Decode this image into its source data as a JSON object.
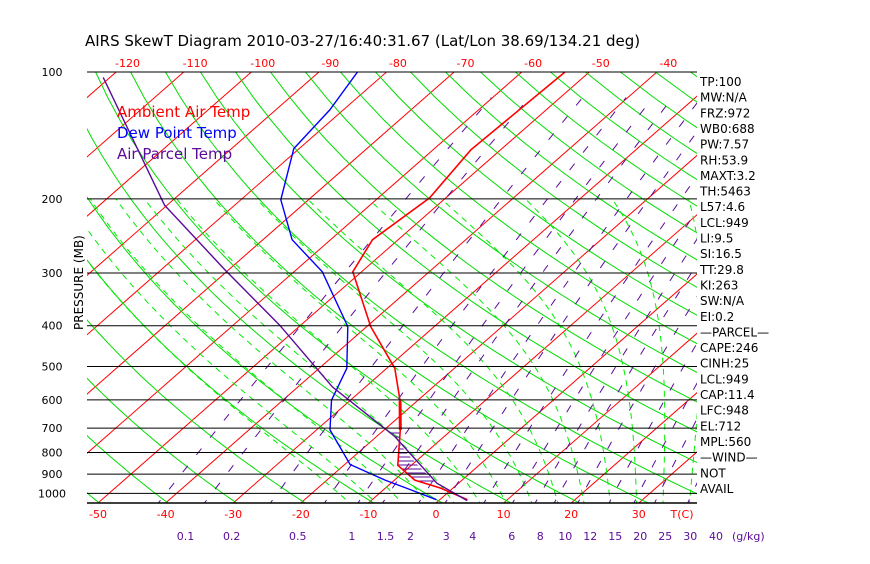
{
  "chart_data": {
    "type": "line",
    "title": "AIRS SkewT Diagram 2010-03-27/16:40:31.67 (Lat/Lon 38.69/134.21 deg)",
    "ylabel": "PRESSURE (MB)",
    "xlabel": "T(C)",
    "mixing_ratio_unit": "(g/kg)",
    "pressure_ticks": [
      100,
      200,
      300,
      400,
      500,
      600,
      700,
      800,
      900,
      1000
    ],
    "bottom_temp_ticks": [
      -50,
      -40,
      -30,
      -20,
      -10,
      0,
      10,
      20,
      30
    ],
    "top_temp_ticks": [
      -120,
      -110,
      -100,
      -90,
      -80,
      -70,
      -60,
      -50,
      -40
    ],
    "mixing_ratio_ticks": [
      "0.1",
      "0.2",
      "0.5",
      "1",
      "1.5",
      "2",
      "3",
      "4",
      "6",
      "8",
      "10",
      "12",
      "15",
      "20",
      "25",
      "30",
      "40"
    ],
    "legend": [
      {
        "label": "Ambient Air Temp",
        "color": "#ff0000"
      },
      {
        "label": "Dew Point Temp",
        "color": "#0000ff"
      },
      {
        "label": "Air Parcel Temp",
        "color": "#5b0b9a"
      }
    ],
    "series": [
      {
        "name": "Ambient Air Temp",
        "color": "#ff0000",
        "points": [
          [
            100,
            -53.6
          ],
          [
            153,
            -54.4
          ],
          [
            199,
            -52.4
          ],
          [
            250,
            -53.8
          ],
          [
            298,
            -51.3
          ],
          [
            402,
            -39.4
          ],
          [
            505,
            -28.8
          ],
          [
            604,
            -22.5
          ],
          [
            707,
            -17.6
          ],
          [
            858,
            -12.0
          ],
          [
            930,
            -7.0
          ],
          [
            971,
            -1.9
          ],
          [
            1035,
            4.1
          ]
        ]
      },
      {
        "name": "Dew Point Temp",
        "color": "#0000ff",
        "points": [
          [
            100,
            -84.3
          ],
          [
            123,
            -82.0
          ],
          [
            152,
            -80.8
          ],
          [
            201,
            -74.1
          ],
          [
            250,
            -65.7
          ],
          [
            298,
            -55.8
          ],
          [
            402,
            -42.8
          ],
          [
            505,
            -35.9
          ],
          [
            601,
            -32.8
          ],
          [
            707,
            -28.0
          ],
          [
            854,
            -19.2
          ],
          [
            930,
            -11.4
          ],
          [
            987,
            -5.3
          ],
          [
            1035,
            -0.5
          ]
        ]
      },
      {
        "name": "Air Parcel Temp",
        "color": "#5b0b9a",
        "points": [
          [
            103,
            -121
          ],
          [
            207,
            -90.4
          ],
          [
            295,
            -70.5
          ],
          [
            399,
            -53.1
          ],
          [
            559,
            -34.9
          ],
          [
            733,
            -17.3
          ],
          [
            946,
            -3.2
          ],
          [
            1040,
            4.2
          ]
        ]
      }
    ],
    "colors": {
      "isotherm": "#ff0000",
      "dry_adiabat": "#00dd00",
      "moist_adiabat": "#00ee00",
      "mixing_ratio": "#5b0b9a",
      "isobar": "#000000"
    }
  },
  "indices": [
    "TP:100",
    "MW:N/A",
    "FRZ:972",
    "WB0:688",
    "PW:7.57",
    "RH:53.9",
    "MAXT:3.2",
    "TH:5463",
    "L57:4.6",
    "LCL:949",
    "LI:9.5",
    "SI:16.5",
    "TT:29.8",
    "KI:263",
    "SW:N/A",
    "EI:0.2",
    "—PARCEL—",
    "CAPE:246",
    "CINH:25",
    "LCL:949",
    "CAP:11.4",
    "LFC:948",
    "EL:712",
    "MPL:560",
    "—WIND—",
    "NOT",
    "AVAIL"
  ]
}
